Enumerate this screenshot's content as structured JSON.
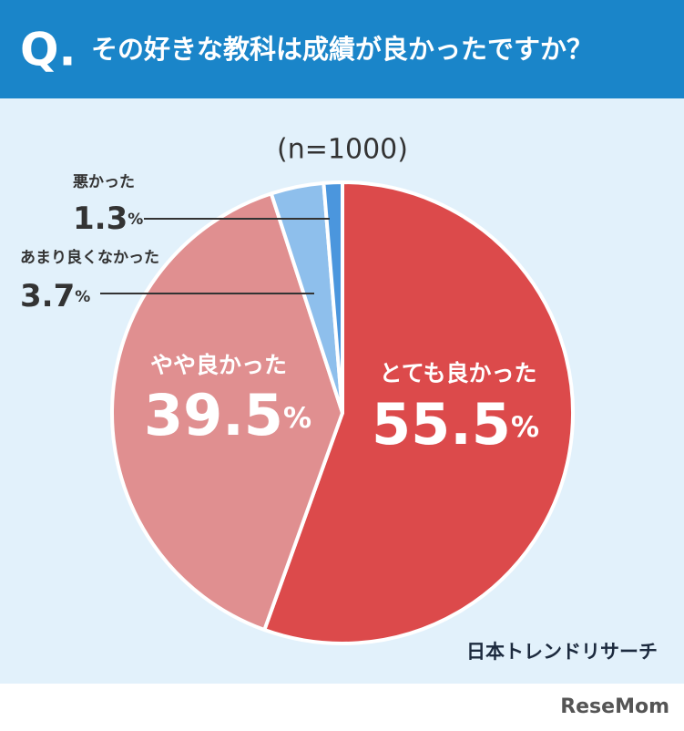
{
  "chart_data": {
    "type": "pie",
    "question_label": "Q.",
    "title": "その好きな教科は成績が良かったですか？",
    "subtitle": "(n=1000)",
    "categories": [
      "とても良かった",
      "やや良かった",
      "あまり良くなかった",
      "悪かった"
    ],
    "values": [
      55.5,
      39.5,
      3.7,
      1.3
    ],
    "unit": "%",
    "colors": [
      "#dc4a4b",
      "#e08f90",
      "#8ebfec",
      "#4b96dd"
    ],
    "source": "日本トレンドリサーチ",
    "logo": "ReseMom"
  }
}
